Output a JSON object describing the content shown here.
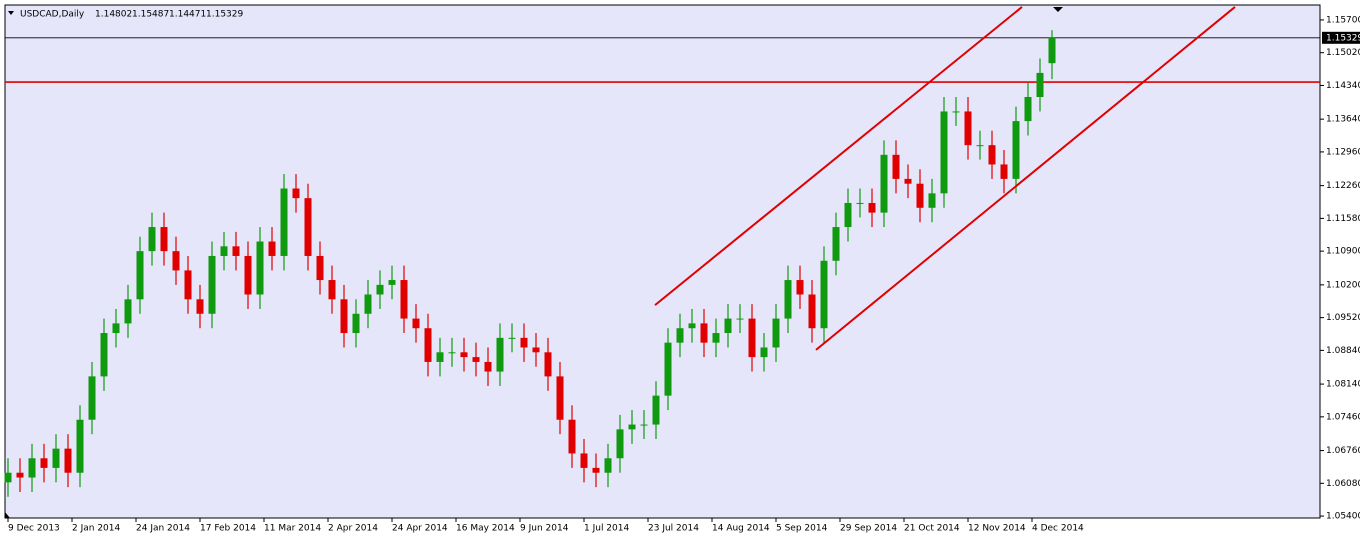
{
  "chart_data": {
    "type": "candlestick",
    "title": "USDCAD,Daily",
    "header_values": [
      1.14802,
      1.15487,
      1.14471,
      1.15329
    ],
    "up_color": "#0f9a0f",
    "down_color": "#e00000",
    "background": "#e6e6fa",
    "x": [
      0,
      3,
      6,
      9,
      12,
      15,
      18,
      21,
      24,
      27,
      30,
      33,
      36,
      39,
      42,
      45,
      48,
      51,
      54,
      57,
      60,
      63,
      66,
      69,
      72,
      75,
      78,
      81,
      84,
      87,
      90,
      93,
      96,
      99,
      102,
      105,
      108,
      111,
      114,
      117,
      120,
      123,
      126,
      129,
      132,
      135,
      138,
      141,
      144,
      147,
      150,
      153,
      156,
      159,
      162,
      165,
      168,
      171,
      174,
      177,
      180,
      183,
      186,
      189,
      192,
      195,
      198,
      201,
      204,
      207,
      210,
      213,
      216,
      219,
      222,
      225,
      228,
      231,
      234,
      237,
      240,
      243,
      246,
      249,
      252,
      255,
      258,
      261
    ],
    "open": [
      1.061,
      1.063,
      1.062,
      1.066,
      1.064,
      1.068,
      1.063,
      1.074,
      1.083,
      1.092,
      1.094,
      1.099,
      1.109,
      1.114,
      1.109,
      1.105,
      1.099,
      1.096,
      1.108,
      1.11,
      1.108,
      1.1,
      1.111,
      1.108,
      1.122,
      1.12,
      1.108,
      1.103,
      1.099,
      1.092,
      1.096,
      1.1,
      1.102,
      1.103,
      1.095,
      1.093,
      1.086,
      1.088,
      1.088,
      1.087,
      1.086,
      1.084,
      1.091,
      1.091,
      1.089,
      1.088,
      1.083,
      1.074,
      1.067,
      1.064,
      1.063,
      1.066,
      1.072,
      1.073,
      1.073,
      1.079,
      1.09,
      1.093,
      1.094,
      1.09,
      1.092,
      1.095,
      1.095,
      1.087,
      1.089,
      1.095,
      1.103,
      1.1,
      1.093,
      1.107,
      1.114,
      1.119,
      1.119,
      1.117,
      1.129,
      1.124,
      1.123,
      1.118,
      1.121,
      1.138,
      1.138,
      1.131,
      1.131,
      1.127,
      1.124,
      1.136,
      1.141,
      1.14802
    ],
    "high": [
      1.066,
      1.066,
      1.069,
      1.069,
      1.071,
      1.071,
      1.077,
      1.086,
      1.095,
      1.097,
      1.102,
      1.112,
      1.117,
      1.117,
      1.112,
      1.108,
      1.102,
      1.111,
      1.113,
      1.113,
      1.111,
      1.114,
      1.114,
      1.125,
      1.125,
      1.123,
      1.111,
      1.106,
      1.102,
      1.099,
      1.103,
      1.105,
      1.106,
      1.106,
      1.098,
      1.096,
      1.091,
      1.091,
      1.091,
      1.09,
      1.089,
      1.094,
      1.094,
      1.094,
      1.092,
      1.091,
      1.086,
      1.077,
      1.07,
      1.067,
      1.069,
      1.075,
      1.076,
      1.076,
      1.082,
      1.093,
      1.096,
      1.097,
      1.097,
      1.095,
      1.098,
      1.098,
      1.098,
      1.092,
      1.098,
      1.106,
      1.106,
      1.103,
      1.11,
      1.117,
      1.122,
      1.122,
      1.122,
      1.132,
      1.132,
      1.127,
      1.126,
      1.124,
      1.141,
      1.141,
      1.141,
      1.134,
      1.134,
      1.13,
      1.139,
      1.144,
      1.149,
      1.15487
    ],
    "low": [
      1.058,
      1.059,
      1.059,
      1.061,
      1.061,
      1.06,
      1.06,
      1.071,
      1.08,
      1.089,
      1.091,
      1.096,
      1.106,
      1.106,
      1.102,
      1.096,
      1.093,
      1.093,
      1.105,
      1.105,
      1.097,
      1.097,
      1.105,
      1.105,
      1.117,
      1.105,
      1.1,
      1.096,
      1.089,
      1.089,
      1.093,
      1.097,
      1.099,
      1.092,
      1.09,
      1.083,
      1.083,
      1.085,
      1.084,
      1.083,
      1.081,
      1.081,
      1.088,
      1.086,
      1.085,
      1.08,
      1.071,
      1.064,
      1.061,
      1.06,
      1.06,
      1.063,
      1.069,
      1.07,
      1.07,
      1.076,
      1.087,
      1.09,
      1.087,
      1.087,
      1.089,
      1.092,
      1.084,
      1.084,
      1.086,
      1.092,
      1.097,
      1.09,
      1.09,
      1.104,
      1.111,
      1.116,
      1.114,
      1.114,
      1.121,
      1.12,
      1.115,
      1.115,
      1.118,
      1.135,
      1.128,
      1.128,
      1.124,
      1.121,
      1.121,
      1.133,
      1.138,
      1.14471
    ],
    "close": [
      1.063,
      1.062,
      1.066,
      1.064,
      1.068,
      1.063,
      1.074,
      1.083,
      1.092,
      1.094,
      1.099,
      1.109,
      1.114,
      1.109,
      1.105,
      1.099,
      1.096,
      1.108,
      1.11,
      1.108,
      1.1,
      1.111,
      1.108,
      1.122,
      1.12,
      1.108,
      1.103,
      1.099,
      1.092,
      1.096,
      1.1,
      1.102,
      1.103,
      1.095,
      1.093,
      1.086,
      1.088,
      1.088,
      1.087,
      1.086,
      1.084,
      1.091,
      1.091,
      1.089,
      1.088,
      1.083,
      1.074,
      1.067,
      1.064,
      1.063,
      1.066,
      1.072,
      1.073,
      1.073,
      1.079,
      1.09,
      1.093,
      1.094,
      1.09,
      1.092,
      1.095,
      1.095,
      1.087,
      1.089,
      1.095,
      1.103,
      1.1,
      1.093,
      1.107,
      1.114,
      1.119,
      1.119,
      1.117,
      1.129,
      1.124,
      1.123,
      1.118,
      1.121,
      1.138,
      1.138,
      1.131,
      1.131,
      1.127,
      1.124,
      1.136,
      1.141,
      1.146,
      1.15329
    ],
    "xlim": [
      -0.75,
      328
    ],
    "ylim": [
      1.0536,
      1.1601
    ],
    "xticks": [
      {
        "value": 0,
        "label": "9 Dec 2013"
      },
      {
        "value": 16,
        "label": "2 Jan 2014"
      },
      {
        "value": 32,
        "label": "24 Jan 2014"
      },
      {
        "value": 48,
        "label": "17 Feb 2014"
      },
      {
        "value": 64,
        "label": "11 Mar 2014"
      },
      {
        "value": 80,
        "label": "2 Apr 2014"
      },
      {
        "value": 96,
        "label": "24 Apr 2014"
      },
      {
        "value": 112,
        "label": "16 May 2014"
      },
      {
        "value": 128,
        "label": "9 Jun 2014"
      },
      {
        "value": 144,
        "label": "1 Jul 2014"
      },
      {
        "value": 160,
        "label": "23 Jul 2014"
      },
      {
        "value": 176,
        "label": "14 Aug 2014"
      },
      {
        "value": 192,
        "label": "5 Sep 2014"
      },
      {
        "value": 208,
        "label": "29 Sep 2014"
      },
      {
        "value": 224,
        "label": "21 Oct 2014"
      },
      {
        "value": 240,
        "label": "12 Nov 2014"
      },
      {
        "value": 256,
        "label": "4 Dec 2014"
      }
    ],
    "yticks": [
      {
        "value": 1.157,
        "label": "1.15700"
      },
      {
        "value": 1.1502,
        "label": "1.15020"
      },
      {
        "value": 1.1434,
        "label": "1.14340"
      },
      {
        "value": 1.1364,
        "label": "1.13640"
      },
      {
        "value": 1.1296,
        "label": "1.12960"
      },
      {
        "value": 1.1226,
        "label": "1.12260"
      },
      {
        "value": 1.1158,
        "label": "1.11580"
      },
      {
        "value": 1.109,
        "label": "1.10900"
      },
      {
        "value": 1.102,
        "label": "1.10200"
      },
      {
        "value": 1.0952,
        "label": "1.09520"
      },
      {
        "value": 1.0884,
        "label": "1.08840"
      },
      {
        "value": 1.0814,
        "label": "1.08140"
      },
      {
        "value": 1.0746,
        "label": "1.07460"
      },
      {
        "value": 1.0676,
        "label": "1.06760"
      },
      {
        "value": 1.0608,
        "label": "1.06080"
      },
      {
        "value": 1.054,
        "label": "1.05400"
      }
    ],
    "last_price": 1.15329,
    "levels": [
      {
        "value": 1.1441,
        "color": "#e00000"
      }
    ],
    "channel_color": "#e00000",
    "channel": [
      {
        "x": [
          161.75,
          253.5
        ],
        "y": [
          1.0978,
          1.1597
        ]
      },
      {
        "x": [
          202,
          306.75
        ],
        "y": [
          1.0885,
          1.1597
        ]
      }
    ],
    "grid": false
  }
}
